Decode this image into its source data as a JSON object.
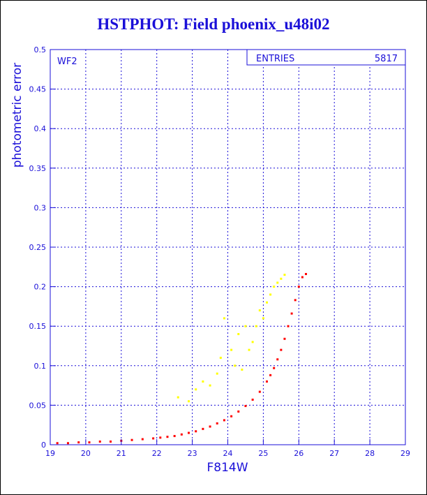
{
  "title": "HSTPHOT: Field phoenix_u48i02",
  "chart_data": {
    "type": "scatter",
    "title": "HSTPHOT: Field phoenix_u48i02",
    "xlabel": "F814W",
    "ylabel": "photometric error",
    "xlim": [
      19,
      29
    ],
    "ylim": [
      0,
      0.5
    ],
    "x_ticks": [
      "19",
      "20",
      "21",
      "22",
      "23",
      "24",
      "25",
      "26",
      "27",
      "28",
      "29"
    ],
    "y_ticks": [
      "0",
      "0.05",
      "0.1",
      "0.15",
      "0.2",
      "0.25",
      "0.3",
      "0.35",
      "0.4",
      "0.45",
      "0.5"
    ],
    "grid": true,
    "panel_label": "WF2",
    "stats_box": {
      "label": "ENTRIES",
      "value": "5817"
    },
    "series": [
      {
        "color": "#ff0000",
        "points": [
          [
            19.2,
            0.002
          ],
          [
            19.5,
            0.002
          ],
          [
            19.8,
            0.003
          ],
          [
            20.1,
            0.003
          ],
          [
            20.4,
            0.004
          ],
          [
            20.7,
            0.004
          ],
          [
            21.0,
            0.005
          ],
          [
            21.3,
            0.006
          ],
          [
            21.6,
            0.007
          ],
          [
            21.9,
            0.008
          ],
          [
            22.1,
            0.009
          ],
          [
            22.3,
            0.01
          ],
          [
            22.5,
            0.011
          ],
          [
            22.7,
            0.013
          ],
          [
            22.9,
            0.015
          ],
          [
            23.1,
            0.017
          ],
          [
            23.3,
            0.02
          ],
          [
            23.5,
            0.023
          ],
          [
            23.7,
            0.027
          ],
          [
            23.9,
            0.031
          ],
          [
            24.1,
            0.036
          ],
          [
            24.3,
            0.042
          ],
          [
            24.5,
            0.049
          ],
          [
            24.7,
            0.057
          ],
          [
            24.9,
            0.067
          ],
          [
            25.1,
            0.08
          ],
          [
            25.2,
            0.088
          ],
          [
            25.3,
            0.097
          ],
          [
            25.4,
            0.108
          ],
          [
            25.5,
            0.12
          ],
          [
            25.6,
            0.134
          ],
          [
            25.7,
            0.15
          ],
          [
            25.8,
            0.166
          ],
          [
            25.9,
            0.183
          ],
          [
            26.0,
            0.2
          ],
          [
            26.1,
            0.212
          ],
          [
            26.2,
            0.216
          ]
        ]
      },
      {
        "color": "#ffff00",
        "points": [
          [
            22.6,
            0.06
          ],
          [
            22.9,
            0.055
          ],
          [
            23.1,
            0.07
          ],
          [
            23.3,
            0.08
          ],
          [
            23.5,
            0.075
          ],
          [
            23.7,
            0.09
          ],
          [
            23.8,
            0.11
          ],
          [
            23.9,
            0.16
          ],
          [
            24.1,
            0.12
          ],
          [
            24.2,
            0.1
          ],
          [
            24.3,
            0.14
          ],
          [
            24.4,
            0.095
          ],
          [
            24.5,
            0.15
          ],
          [
            24.6,
            0.12
          ],
          [
            24.7,
            0.13
          ],
          [
            24.8,
            0.15
          ],
          [
            24.9,
            0.17
          ],
          [
            25.0,
            0.16
          ],
          [
            25.1,
            0.18
          ],
          [
            25.2,
            0.19
          ],
          [
            25.3,
            0.2
          ],
          [
            25.4,
            0.205
          ],
          [
            25.5,
            0.21
          ],
          [
            25.6,
            0.215
          ]
        ]
      }
    ]
  }
}
